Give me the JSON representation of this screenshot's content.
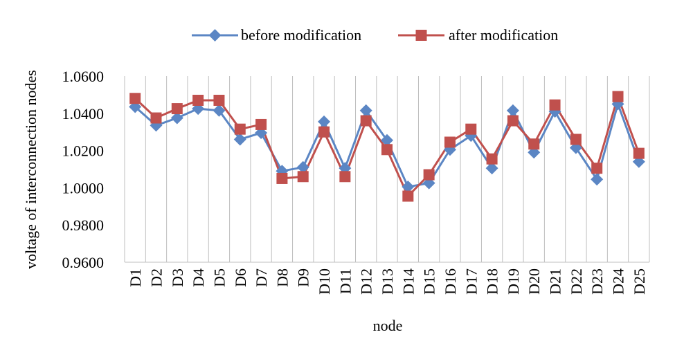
{
  "chart_data": {
    "type": "line",
    "title": "",
    "xlabel": "node",
    "ylabel": "voltage of interconnection nodes",
    "categories": [
      "D1",
      "D2",
      "D3",
      "D4",
      "D5",
      "D6",
      "D7",
      "D8",
      "D9",
      "D10",
      "D11",
      "D12",
      "D13",
      "D14",
      "D15",
      "D16",
      "D17",
      "D18",
      "D19",
      "D20",
      "D21",
      "D22",
      "D23",
      "D24",
      "D25"
    ],
    "ylim": [
      0.96,
      1.06
    ],
    "yticks": [
      "0.9600",
      "0.9800",
      "1.0000",
      "1.0200",
      "1.0400",
      "1.0600"
    ],
    "grid": "vertical",
    "legend_position": "top",
    "series": [
      {
        "name": "before modification",
        "color": "#5b86c4",
        "marker": "diamond",
        "values": [
          1.0435,
          1.0335,
          1.0375,
          1.0425,
          1.0415,
          1.026,
          1.0295,
          1.009,
          1.011,
          1.0355,
          1.0105,
          1.0415,
          1.0255,
          1.0005,
          1.0025,
          1.0205,
          1.028,
          1.0105,
          1.0415,
          1.019,
          1.041,
          1.0215,
          1.0045,
          1.045,
          1.014
        ]
      },
      {
        "name": "after modification",
        "color": "#c0504d",
        "marker": "square",
        "values": [
          1.048,
          1.0375,
          1.0425,
          1.047,
          1.047,
          1.0315,
          1.034,
          1.005,
          1.006,
          1.03,
          1.006,
          1.036,
          1.0205,
          0.9955,
          1.007,
          1.0245,
          1.0315,
          1.0155,
          1.036,
          1.0235,
          1.0445,
          1.026,
          1.0105,
          1.049,
          1.0185
        ]
      }
    ]
  }
}
